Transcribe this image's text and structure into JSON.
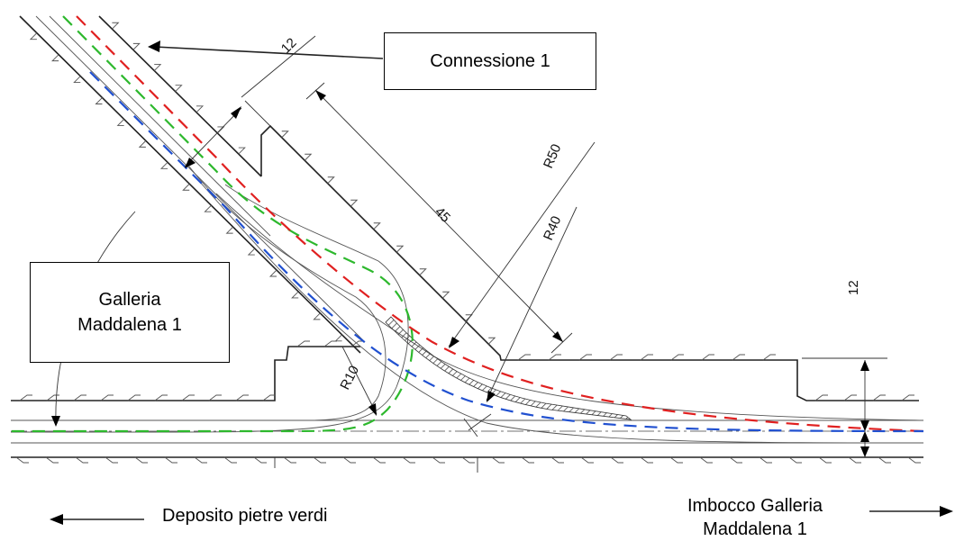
{
  "labels": {
    "connessione": "Connessione 1",
    "galleria": "Galleria\nMaddalena 1",
    "deposito": "Deposito pietre verdi",
    "imbocco": "Imbocco Galleria\nMaddalena 1"
  },
  "dimensions": {
    "width_top": "12",
    "length": "45",
    "radius_outer": "R50",
    "radius_inner": "R40",
    "radius_small": "R10",
    "width_right": "12"
  },
  "colors": {
    "lane_green": "#2db82d",
    "lane_red": "#e02020",
    "lane_blue": "#2050d0"
  }
}
